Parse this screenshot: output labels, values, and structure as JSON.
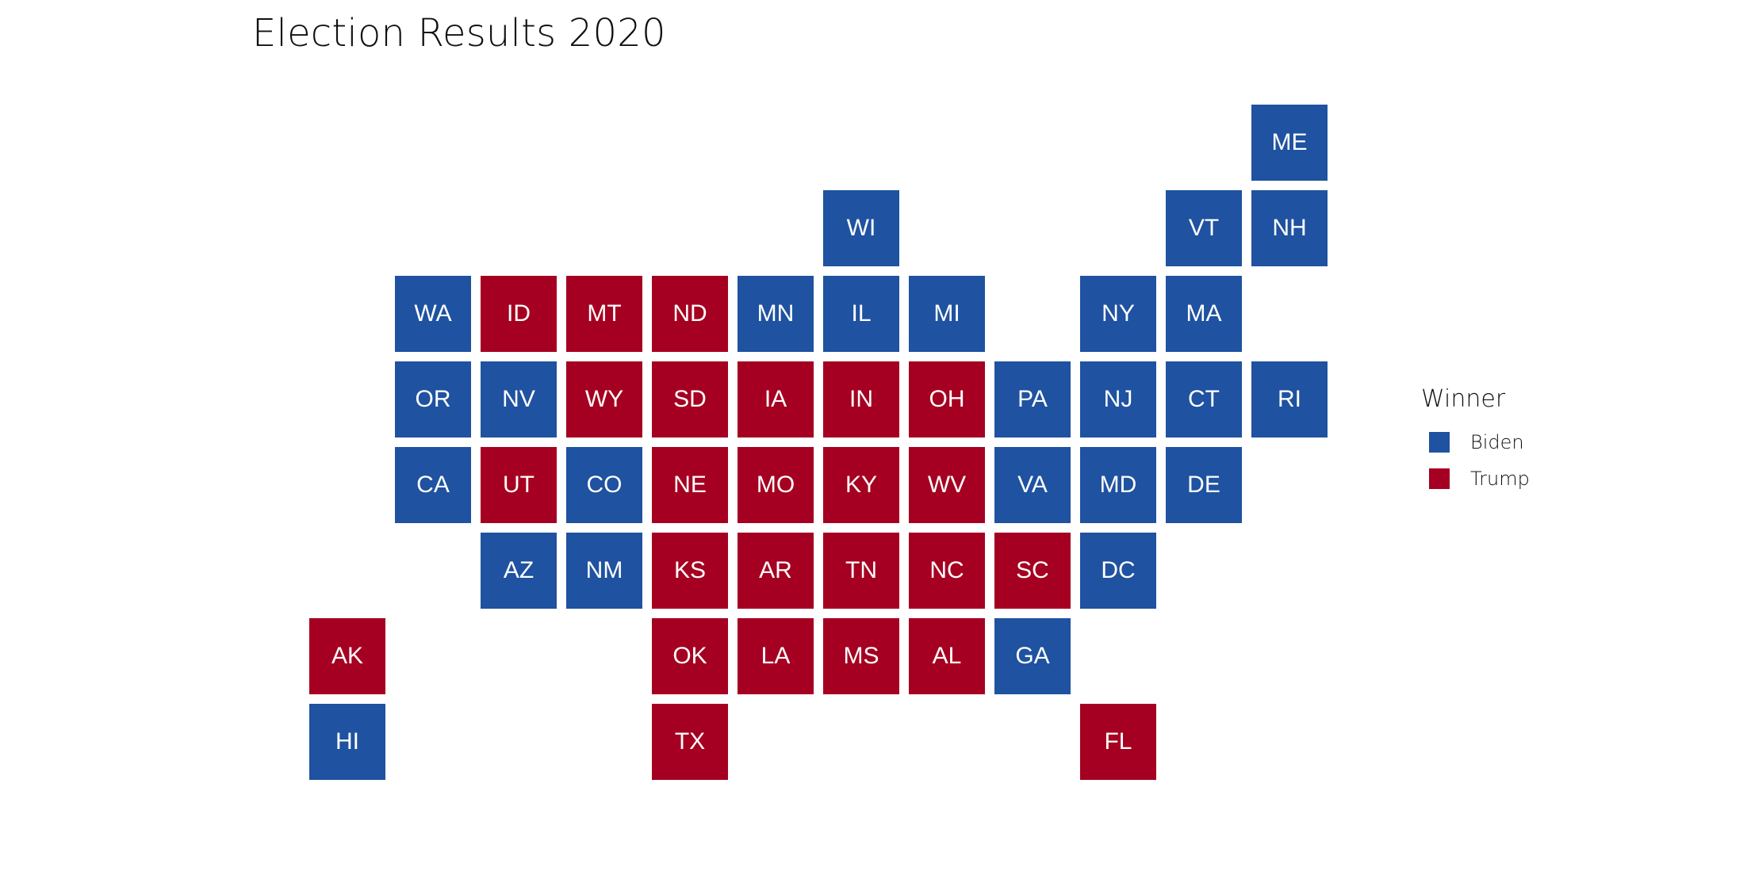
{
  "title": "Election Results 2020",
  "colors": {
    "Biden": "#1f52a0",
    "Trump": "#a50021"
  },
  "legend": {
    "title": "Winner",
    "items": [
      {
        "label": "Biden",
        "color": "#1f52a0"
      },
      {
        "label": "Trump",
        "color": "#a50021"
      }
    ]
  },
  "tiles": [
    {
      "state": "ME",
      "winner": "Biden",
      "col": 11,
      "row": 0
    },
    {
      "state": "WI",
      "winner": "Biden",
      "col": 6,
      "row": 1
    },
    {
      "state": "VT",
      "winner": "Biden",
      "col": 10,
      "row": 1
    },
    {
      "state": "NH",
      "winner": "Biden",
      "col": 11,
      "row": 1
    },
    {
      "state": "WA",
      "winner": "Biden",
      "col": 1,
      "row": 2
    },
    {
      "state": "ID",
      "winner": "Trump",
      "col": 2,
      "row": 2
    },
    {
      "state": "MT",
      "winner": "Trump",
      "col": 3,
      "row": 2
    },
    {
      "state": "ND",
      "winner": "Trump",
      "col": 4,
      "row": 2
    },
    {
      "state": "MN",
      "winner": "Biden",
      "col": 5,
      "row": 2
    },
    {
      "state": "IL",
      "winner": "Biden",
      "col": 6,
      "row": 2
    },
    {
      "state": "MI",
      "winner": "Biden",
      "col": 7,
      "row": 2
    },
    {
      "state": "NY",
      "winner": "Biden",
      "col": 9,
      "row": 2
    },
    {
      "state": "MA",
      "winner": "Biden",
      "col": 10,
      "row": 2
    },
    {
      "state": "OR",
      "winner": "Biden",
      "col": 1,
      "row": 3
    },
    {
      "state": "NV",
      "winner": "Biden",
      "col": 2,
      "row": 3
    },
    {
      "state": "WY",
      "winner": "Trump",
      "col": 3,
      "row": 3
    },
    {
      "state": "SD",
      "winner": "Trump",
      "col": 4,
      "row": 3
    },
    {
      "state": "IA",
      "winner": "Trump",
      "col": 5,
      "row": 3
    },
    {
      "state": "IN",
      "winner": "Trump",
      "col": 6,
      "row": 3
    },
    {
      "state": "OH",
      "winner": "Trump",
      "col": 7,
      "row": 3
    },
    {
      "state": "PA",
      "winner": "Biden",
      "col": 8,
      "row": 3
    },
    {
      "state": "NJ",
      "winner": "Biden",
      "col": 9,
      "row": 3
    },
    {
      "state": "CT",
      "winner": "Biden",
      "col": 10,
      "row": 3
    },
    {
      "state": "RI",
      "winner": "Biden",
      "col": 11,
      "row": 3
    },
    {
      "state": "CA",
      "winner": "Biden",
      "col": 1,
      "row": 4
    },
    {
      "state": "UT",
      "winner": "Trump",
      "col": 2,
      "row": 4
    },
    {
      "state": "CO",
      "winner": "Biden",
      "col": 3,
      "row": 4
    },
    {
      "state": "NE",
      "winner": "Trump",
      "col": 4,
      "row": 4
    },
    {
      "state": "MO",
      "winner": "Trump",
      "col": 5,
      "row": 4
    },
    {
      "state": "KY",
      "winner": "Trump",
      "col": 6,
      "row": 4
    },
    {
      "state": "WV",
      "winner": "Trump",
      "col": 7,
      "row": 4
    },
    {
      "state": "VA",
      "winner": "Biden",
      "col": 8,
      "row": 4
    },
    {
      "state": "MD",
      "winner": "Biden",
      "col": 9,
      "row": 4
    },
    {
      "state": "DE",
      "winner": "Biden",
      "col": 10,
      "row": 4
    },
    {
      "state": "AZ",
      "winner": "Biden",
      "col": 2,
      "row": 5
    },
    {
      "state": "NM",
      "winner": "Biden",
      "col": 3,
      "row": 5
    },
    {
      "state": "KS",
      "winner": "Trump",
      "col": 4,
      "row": 5
    },
    {
      "state": "AR",
      "winner": "Trump",
      "col": 5,
      "row": 5
    },
    {
      "state": "TN",
      "winner": "Trump",
      "col": 6,
      "row": 5
    },
    {
      "state": "NC",
      "winner": "Trump",
      "col": 7,
      "row": 5
    },
    {
      "state": "SC",
      "winner": "Trump",
      "col": 8,
      "row": 5
    },
    {
      "state": "DC",
      "winner": "Biden",
      "col": 9,
      "row": 5
    },
    {
      "state": "AK",
      "winner": "Trump",
      "col": 0,
      "row": 6
    },
    {
      "state": "OK",
      "winner": "Trump",
      "col": 4,
      "row": 6
    },
    {
      "state": "LA",
      "winner": "Trump",
      "col": 5,
      "row": 6
    },
    {
      "state": "MS",
      "winner": "Trump",
      "col": 6,
      "row": 6
    },
    {
      "state": "AL",
      "winner": "Trump",
      "col": 7,
      "row": 6
    },
    {
      "state": "GA",
      "winner": "Biden",
      "col": 8,
      "row": 6
    },
    {
      "state": "HI",
      "winner": "Biden",
      "col": 0,
      "row": 7
    },
    {
      "state": "TX",
      "winner": "Trump",
      "col": 4,
      "row": 7
    },
    {
      "state": "FL",
      "winner": "Trump",
      "col": 9,
      "row": 7
    }
  ]
}
